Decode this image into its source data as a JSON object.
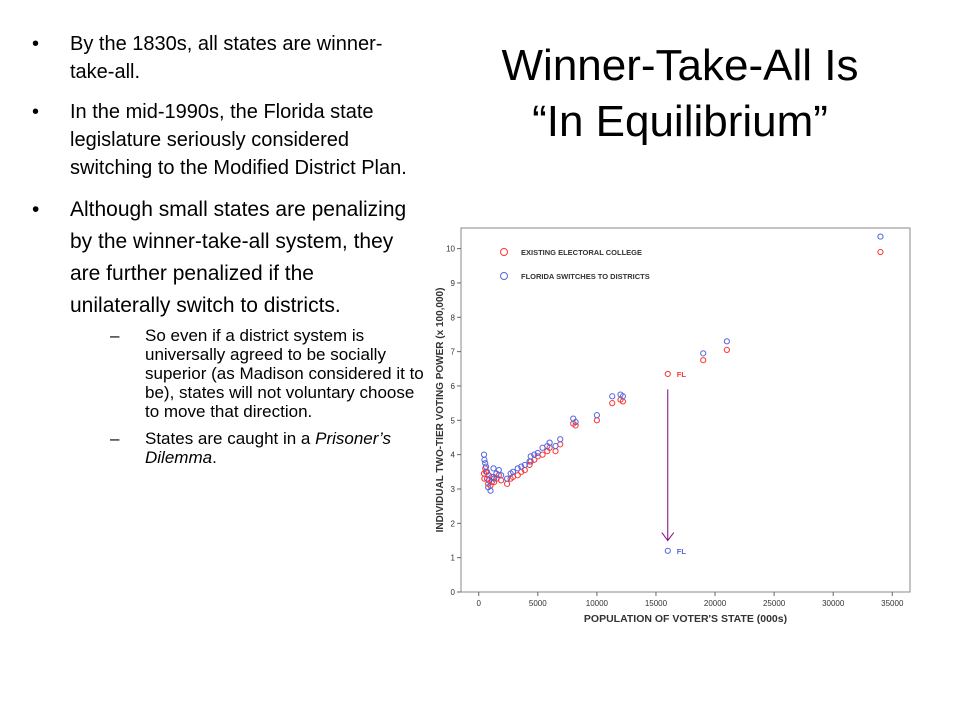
{
  "slide": {
    "title_lines": [
      "Winner-Take-All Is",
      "“In Equilibrium”"
    ],
    "bullets": [
      "By the 1830s, all states are winner-take-all.",
      "In the mid-1990s, the Florida state legislature seriously considered switching to the Modified District Plan.",
      "Although small states are penalizing by the winner-take-all system, they are further penalized if the unilaterally switch to districts."
    ],
    "sub_bullets": [
      {
        "text": "So even if a district system is universally agreed to be socially superior (as Madison considered it to be), states will not voluntary choose to move that direction."
      },
      {
        "text_before": "States are caught in a ",
        "text_italic": "Prisoner’s Dilemma",
        "text_after": "."
      }
    ]
  },
  "chart_data": {
    "type": "scatter",
    "xlabel": "POPULATION OF VOTER'S STATE (000s)",
    "ylabel": "INDIVIDUAL TWO-TIER VOTING POWER (x 100,000)",
    "xlim": [
      -1500,
      36500
    ],
    "ylim": [
      0,
      10.6
    ],
    "x_ticks": [
      0,
      5000,
      10000,
      15000,
      20000,
      25000,
      30000,
      35000
    ],
    "y_ticks": [
      0,
      1,
      2,
      3,
      4,
      5,
      6,
      7,
      8,
      9,
      10
    ],
    "legend_position": "top-left",
    "colors": {
      "existing": "#ff3333",
      "districts": "#5566dd",
      "arrow": "#800080"
    },
    "series": [
      {
        "name": "EXISTING ELECTORAL COLLEGE",
        "points": [
          [
            450,
            3.45
          ],
          [
            480,
            3.3
          ],
          [
            550,
            3.6
          ],
          [
            620,
            3.5
          ],
          [
            700,
            3.3
          ],
          [
            800,
            3.15
          ],
          [
            850,
            3.4
          ],
          [
            1000,
            3.1
          ],
          [
            1100,
            3.2
          ],
          [
            1250,
            3.35
          ],
          [
            1300,
            3.2
          ],
          [
            1500,
            3.3
          ],
          [
            1700,
            3.4
          ],
          [
            1900,
            3.25
          ],
          [
            2400,
            3.15
          ],
          [
            2700,
            3.3
          ],
          [
            2900,
            3.35
          ],
          [
            3300,
            3.4
          ],
          [
            3600,
            3.5
          ],
          [
            3900,
            3.55
          ],
          [
            4300,
            3.7
          ],
          [
            4400,
            3.8
          ],
          [
            4700,
            3.85
          ],
          [
            5000,
            3.95
          ],
          [
            5400,
            4.0
          ],
          [
            5800,
            4.1
          ],
          [
            6000,
            4.2
          ],
          [
            6500,
            4.1
          ],
          [
            6900,
            4.3
          ],
          [
            8000,
            4.9
          ],
          [
            8200,
            4.85
          ],
          [
            10000,
            5.0
          ],
          [
            11300,
            5.5
          ],
          [
            12000,
            5.6
          ],
          [
            12200,
            5.55
          ],
          [
            16000,
            6.35
          ],
          [
            19000,
            6.75
          ],
          [
            21000,
            7.05
          ],
          [
            34000,
            9.9
          ]
        ]
      },
      {
        "name": "FLORIDA SWITCHES TO DISTRICTS",
        "points": [
          [
            450,
            4.0
          ],
          [
            480,
            3.85
          ],
          [
            550,
            3.75
          ],
          [
            620,
            3.65
          ],
          [
            700,
            3.5
          ],
          [
            800,
            3.05
          ],
          [
            850,
            3.25
          ],
          [
            1000,
            2.95
          ],
          [
            1100,
            3.35
          ],
          [
            1250,
            3.6
          ],
          [
            1300,
            3.3
          ],
          [
            1500,
            3.45
          ],
          [
            1700,
            3.55
          ],
          [
            1900,
            3.4
          ],
          [
            2400,
            3.3
          ],
          [
            2700,
            3.45
          ],
          [
            2900,
            3.5
          ],
          [
            3300,
            3.6
          ],
          [
            3600,
            3.65
          ],
          [
            3900,
            3.7
          ],
          [
            4300,
            3.8
          ],
          [
            4400,
            3.95
          ],
          [
            4700,
            4.0
          ],
          [
            5000,
            4.05
          ],
          [
            5400,
            4.2
          ],
          [
            5800,
            4.25
          ],
          [
            6000,
            4.35
          ],
          [
            6500,
            4.25
          ],
          [
            6900,
            4.45
          ],
          [
            8000,
            5.05
          ],
          [
            8200,
            4.95
          ],
          [
            10000,
            5.15
          ],
          [
            11300,
            5.7
          ],
          [
            12000,
            5.75
          ],
          [
            12200,
            5.7
          ],
          [
            16000,
            1.2
          ],
          [
            19000,
            6.95
          ],
          [
            21000,
            7.3
          ],
          [
            34000,
            10.35
          ]
        ]
      }
    ],
    "annotations": [
      {
        "label": "FL",
        "x": 16000,
        "y": 6.35,
        "color": "#ff3333"
      },
      {
        "label": "FL",
        "x": 16000,
        "y": 1.2,
        "color": "#5566dd"
      }
    ],
    "arrow": {
      "from": [
        16000,
        5.9
      ],
      "to": [
        16000,
        1.5
      ]
    }
  }
}
